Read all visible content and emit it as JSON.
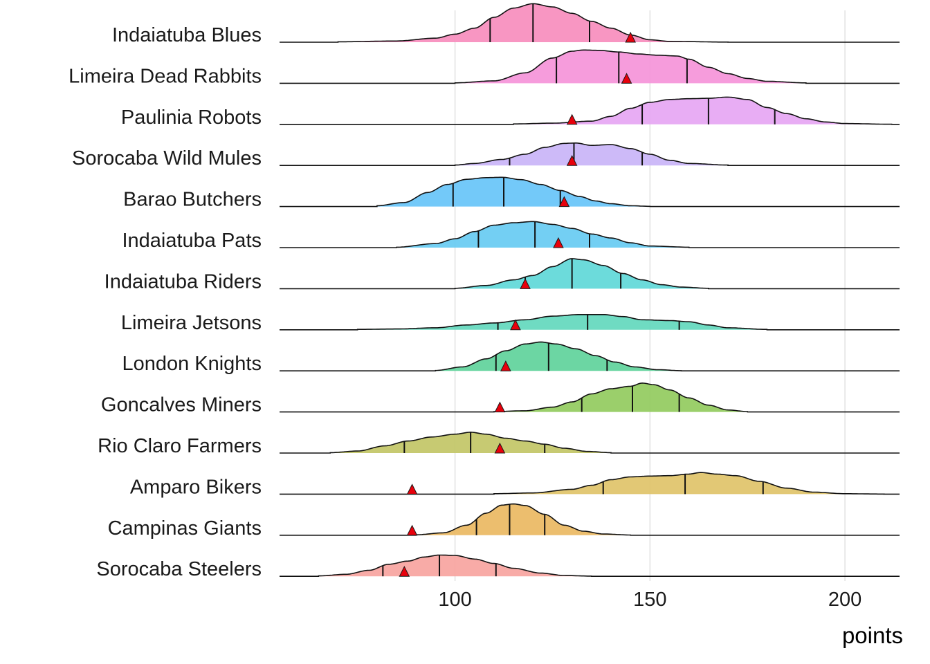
{
  "chart_data": {
    "type": "ridgeline",
    "xlabel": "points",
    "xlim": [
      55,
      214
    ],
    "x_ticks": [
      100,
      150,
      200
    ],
    "x_tick_labels": [
      "100",
      "150",
      "200"
    ],
    "grid": "vertical",
    "marker": {
      "shape": "triangle",
      "color": "#e8000b",
      "meaning": "actual score"
    },
    "quantile_lines": "25th, 50th, 75th percentiles",
    "series": [
      {
        "name": "Indaiatuba Blues",
        "color": "#f78dbd",
        "density": [
          [
            70,
            0.01
          ],
          [
            85,
            0.03
          ],
          [
            95,
            0.1
          ],
          [
            100,
            0.2
          ],
          [
            105,
            0.35
          ],
          [
            110,
            0.62
          ],
          [
            115,
            0.85
          ],
          [
            120,
            0.96
          ],
          [
            125,
            0.88
          ],
          [
            130,
            0.72
          ],
          [
            135,
            0.52
          ],
          [
            140,
            0.35
          ],
          [
            145,
            0.18
          ],
          [
            150,
            0.06
          ],
          [
            155,
            0.02
          ],
          [
            170,
            0.003
          ]
        ],
        "quartiles": [
          109,
          120,
          134.5
        ],
        "marker": 145
      },
      {
        "name": "Limeira Dead Rabbits",
        "color": "#f594d9",
        "density": [
          [
            100,
            0.01
          ],
          [
            110,
            0.06
          ],
          [
            118,
            0.26
          ],
          [
            125,
            0.63
          ],
          [
            130,
            0.8
          ],
          [
            133,
            0.83
          ],
          [
            137,
            0.82
          ],
          [
            142,
            0.78
          ],
          [
            147,
            0.73
          ],
          [
            152,
            0.7
          ],
          [
            157,
            0.68
          ],
          [
            160,
            0.6
          ],
          [
            165,
            0.4
          ],
          [
            170,
            0.24
          ],
          [
            175,
            0.12
          ],
          [
            180,
            0.05
          ],
          [
            190,
            0.01
          ]
        ],
        "quartiles": [
          126,
          142,
          159.5
        ],
        "marker": 144
      },
      {
        "name": "Paulinia Robots",
        "color": "#e6a6f3",
        "density": [
          [
            115,
            0.01
          ],
          [
            125,
            0.03
          ],
          [
            135,
            0.08
          ],
          [
            140,
            0.2
          ],
          [
            145,
            0.4
          ],
          [
            150,
            0.55
          ],
          [
            155,
            0.62
          ],
          [
            160,
            0.64
          ],
          [
            165,
            0.65
          ],
          [
            170,
            0.68
          ],
          [
            175,
            0.62
          ],
          [
            180,
            0.42
          ],
          [
            185,
            0.27
          ],
          [
            190,
            0.14
          ],
          [
            195,
            0.06
          ],
          [
            200,
            0.02
          ],
          [
            212,
            0.003
          ]
        ],
        "quartiles": [
          148,
          165,
          182
        ],
        "marker": 130
      },
      {
        "name": "Sorocaba Wild Mules",
        "color": "#c9b4f7",
        "density": [
          [
            100,
            0.01
          ],
          [
            105,
            0.05
          ],
          [
            112,
            0.15
          ],
          [
            118,
            0.28
          ],
          [
            123,
            0.45
          ],
          [
            128,
            0.55
          ],
          [
            131,
            0.56
          ],
          [
            135,
            0.5
          ],
          [
            140,
            0.52
          ],
          [
            145,
            0.42
          ],
          [
            150,
            0.28
          ],
          [
            155,
            0.13
          ],
          [
            160,
            0.05
          ],
          [
            170,
            0.01
          ]
        ],
        "quartiles": [
          114,
          130.5,
          148
        ],
        "marker": 130
      },
      {
        "name": "Barao Butchers",
        "color": "#67c4f9",
        "density": [
          [
            80,
            0.02
          ],
          [
            87,
            0.1
          ],
          [
            93,
            0.35
          ],
          [
            98,
            0.55
          ],
          [
            103,
            0.68
          ],
          [
            108,
            0.72
          ],
          [
            112,
            0.73
          ],
          [
            117,
            0.67
          ],
          [
            122,
            0.55
          ],
          [
            127,
            0.4
          ],
          [
            132,
            0.25
          ],
          [
            136,
            0.14
          ],
          [
            140,
            0.07
          ],
          [
            145,
            0.02
          ],
          [
            150,
            0.005
          ]
        ],
        "quartiles": [
          99.5,
          112.5,
          127
        ],
        "marker": 128
      },
      {
        "name": "Indaiatuba Pats",
        "color": "#67cbf2",
        "density": [
          [
            85,
            0.01
          ],
          [
            95,
            0.1
          ],
          [
            100,
            0.22
          ],
          [
            105,
            0.4
          ],
          [
            110,
            0.56
          ],
          [
            115,
            0.62
          ],
          [
            120,
            0.65
          ],
          [
            125,
            0.58
          ],
          [
            130,
            0.48
          ],
          [
            135,
            0.34
          ],
          [
            140,
            0.24
          ],
          [
            145,
            0.12
          ],
          [
            150,
            0.04
          ],
          [
            160,
            0.01
          ]
        ],
        "quartiles": [
          106,
          120.5,
          134.5
        ],
        "marker": 126.5
      },
      {
        "name": "Indaiatuba Riders",
        "color": "#60d8d8",
        "density": [
          [
            100,
            0.01
          ],
          [
            108,
            0.08
          ],
          [
            115,
            0.22
          ],
          [
            120,
            0.33
          ],
          [
            125,
            0.55
          ],
          [
            130,
            0.75
          ],
          [
            133,
            0.72
          ],
          [
            138,
            0.58
          ],
          [
            143,
            0.38
          ],
          [
            148,
            0.22
          ],
          [
            153,
            0.1
          ],
          [
            158,
            0.04
          ],
          [
            165,
            0.01
          ]
        ],
        "quartiles": [
          118,
          130,
          142.5
        ],
        "marker": 118
      },
      {
        "name": "Limeira Jetsons",
        "color": "#63d8bd",
        "density": [
          [
            75,
            0.01
          ],
          [
            85,
            0.02
          ],
          [
            95,
            0.05
          ],
          [
            103,
            0.12
          ],
          [
            110,
            0.17
          ],
          [
            118,
            0.25
          ],
          [
            125,
            0.34
          ],
          [
            132,
            0.38
          ],
          [
            138,
            0.38
          ],
          [
            143,
            0.33
          ],
          [
            148,
            0.25
          ],
          [
            155,
            0.23
          ],
          [
            160,
            0.2
          ],
          [
            165,
            0.12
          ],
          [
            170,
            0.05
          ],
          [
            180,
            0.01
          ]
        ],
        "quartiles": [
          111,
          134,
          157.5
        ],
        "marker": 115.5
      },
      {
        "name": "London Knights",
        "color": "#5fd39b",
        "density": [
          [
            95,
            0.01
          ],
          [
            102,
            0.1
          ],
          [
            108,
            0.3
          ],
          [
            113,
            0.5
          ],
          [
            118,
            0.67
          ],
          [
            122,
            0.72
          ],
          [
            126,
            0.67
          ],
          [
            131,
            0.55
          ],
          [
            136,
            0.38
          ],
          [
            141,
            0.22
          ],
          [
            146,
            0.1
          ],
          [
            152,
            0.03
          ],
          [
            158,
            0.005
          ]
        ],
        "quartiles": [
          110.5,
          124,
          139
        ],
        "marker": 113
      },
      {
        "name": "Goncalves Miners",
        "color": "#93cb5e",
        "density": [
          [
            110,
            0.01
          ],
          [
            118,
            0.03
          ],
          [
            125,
            0.12
          ],
          [
            130,
            0.25
          ],
          [
            135,
            0.45
          ],
          [
            140,
            0.58
          ],
          [
            145,
            0.64
          ],
          [
            148,
            0.72
          ],
          [
            151,
            0.68
          ],
          [
            155,
            0.55
          ],
          [
            160,
            0.35
          ],
          [
            165,
            0.17
          ],
          [
            170,
            0.05
          ],
          [
            175,
            0.01
          ]
        ],
        "quartiles": [
          132.5,
          145.5,
          157.5
        ],
        "marker": 111.5
      },
      {
        "name": "Rio Claro Farmers",
        "color": "#c2c566",
        "density": [
          [
            68,
            0.01
          ],
          [
            75,
            0.05
          ],
          [
            82,
            0.18
          ],
          [
            88,
            0.3
          ],
          [
            94,
            0.4
          ],
          [
            100,
            0.47
          ],
          [
            104,
            0.52
          ],
          [
            108,
            0.47
          ],
          [
            113,
            0.37
          ],
          [
            118,
            0.3
          ],
          [
            123,
            0.22
          ],
          [
            128,
            0.12
          ],
          [
            134,
            0.04
          ],
          [
            140,
            0.01
          ]
        ],
        "quartiles": [
          87,
          104,
          123
        ],
        "marker": 111.5
      },
      {
        "name": "Amparo Bikers",
        "color": "#dfc369",
        "density": [
          [
            110,
            0.01
          ],
          [
            120,
            0.03
          ],
          [
            130,
            0.12
          ],
          [
            135,
            0.22
          ],
          [
            140,
            0.36
          ],
          [
            145,
            0.43
          ],
          [
            150,
            0.45
          ],
          [
            155,
            0.46
          ],
          [
            160,
            0.5
          ],
          [
            163,
            0.54
          ],
          [
            167,
            0.5
          ],
          [
            172,
            0.46
          ],
          [
            178,
            0.32
          ],
          [
            185,
            0.15
          ],
          [
            192,
            0.05
          ],
          [
            200,
            0.01
          ],
          [
            210,
            0.002
          ]
        ],
        "quartiles": [
          138,
          159,
          179
        ],
        "marker": 89
      },
      {
        "name": "Campinas Giants",
        "color": "#eab862",
        "density": [
          [
            90,
            0.01
          ],
          [
            97,
            0.06
          ],
          [
            103,
            0.25
          ],
          [
            108,
            0.55
          ],
          [
            112,
            0.75
          ],
          [
            115,
            0.78
          ],
          [
            118,
            0.74
          ],
          [
            123,
            0.52
          ],
          [
            128,
            0.25
          ],
          [
            133,
            0.1
          ],
          [
            138,
            0.03
          ],
          [
            145,
            0.005
          ]
        ],
        "quartiles": [
          105.5,
          114,
          123
        ],
        "marker": 89
      },
      {
        "name": "Sorocaba Steelers",
        "color": "#f7a4a0",
        "density": [
          [
            65,
            0.01
          ],
          [
            72,
            0.05
          ],
          [
            78,
            0.15
          ],
          [
            83,
            0.3
          ],
          [
            88,
            0.38
          ],
          [
            92,
            0.48
          ],
          [
            96,
            0.53
          ],
          [
            100,
            0.52
          ],
          [
            105,
            0.43
          ],
          [
            110,
            0.32
          ],
          [
            115,
            0.2
          ],
          [
            122,
            0.08
          ],
          [
            128,
            0.02
          ],
          [
            135,
            0.005
          ]
        ],
        "quartiles": [
          81.5,
          96,
          110.5
        ],
        "marker": 87
      }
    ]
  }
}
